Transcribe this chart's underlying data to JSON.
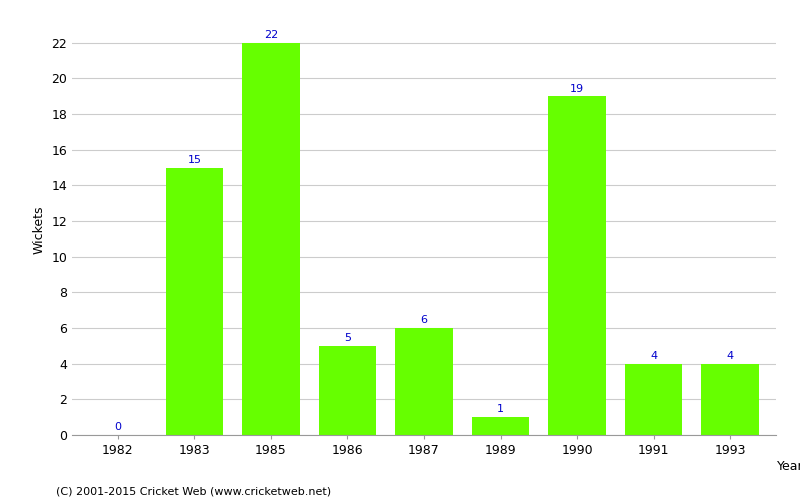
{
  "years": [
    "1982",
    "1983",
    "1985",
    "1986",
    "1987",
    "1989",
    "1990",
    "1991",
    "1993"
  ],
  "wickets": [
    0,
    15,
    22,
    5,
    6,
    1,
    19,
    4,
    4
  ],
  "bar_color": "#66ff00",
  "bar_edgecolor": "#66ff00",
  "label_color": "#0000cc",
  "xlabel": "Year",
  "ylabel": "Wickets",
  "ylim": [
    0,
    23
  ],
  "yticks": [
    0,
    2,
    4,
    6,
    8,
    10,
    12,
    14,
    16,
    18,
    20,
    22
  ],
  "background_color": "#ffffff",
  "grid_color": "#cccccc",
  "label_fontsize": 8,
  "axis_fontsize": 9,
  "caption": "(C) 2001-2015 Cricket Web (www.cricketweb.net)",
  "bar_width": 0.75
}
